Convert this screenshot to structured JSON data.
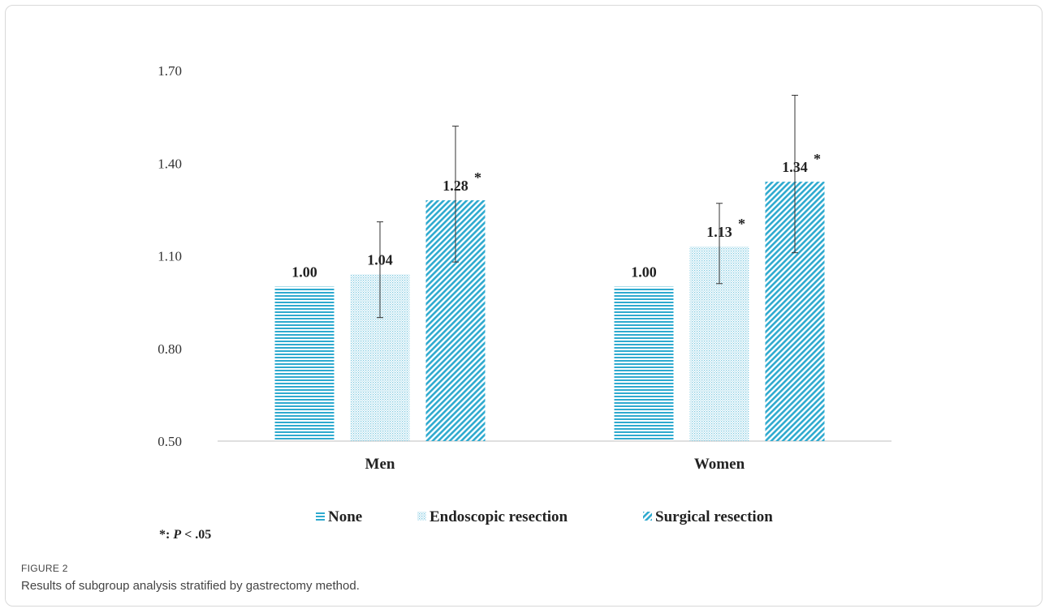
{
  "figure": {
    "label": "FIGURE 2",
    "caption": "Results of subgroup analysis stratified by gastrectomy method."
  },
  "chart_data": {
    "type": "bar",
    "categories": [
      "Men",
      "Women"
    ],
    "yticks": [
      "1.70",
      "1.40",
      "1.10",
      "0.80",
      "0.50"
    ],
    "ylim": [
      0.5,
      1.7
    ],
    "grid": false,
    "legend_position": "bottom",
    "series": [
      {
        "name": "None",
        "pattern": "horizontal",
        "values": [
          1.0,
          1.0
        ],
        "labels": [
          "1.00",
          "1.00"
        ],
        "ci_lower": [
          null,
          null
        ],
        "ci_upper": [
          null,
          null
        ],
        "significant": [
          false,
          false
        ]
      },
      {
        "name": "Endoscopic resection",
        "pattern": "dotted",
        "values": [
          1.04,
          1.13
        ],
        "labels": [
          "1.04",
          "1.13"
        ],
        "ci_lower": [
          0.9,
          1.01
        ],
        "ci_upper": [
          1.21,
          1.27
        ],
        "significant": [
          false,
          true
        ]
      },
      {
        "name": "Surgical resection",
        "pattern": "diagonal",
        "values": [
          1.28,
          1.34
        ],
        "labels": [
          "1.28",
          "1.34"
        ],
        "ci_lower": [
          1.08,
          1.11
        ],
        "ci_upper": [
          1.52,
          1.62
        ],
        "significant": [
          true,
          true
        ]
      }
    ],
    "significance_marker": "*",
    "footnote": {
      "symbol": "*:",
      "p_label": "P",
      "p_text": "< .05"
    },
    "colors": {
      "bar": "#2eaacf",
      "axis": "#bfbfbf",
      "text": "#222222"
    }
  }
}
